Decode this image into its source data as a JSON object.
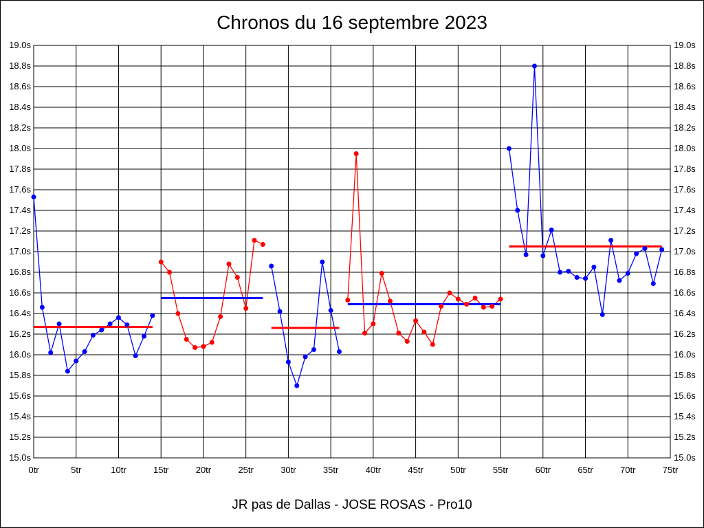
{
  "chart_data": {
    "type": "line",
    "title": "Chronos du 16 septembre 2023",
    "subtitle": "JR pas de Dallas - JOSE ROSAS - Pro10",
    "xlim": [
      0,
      75
    ],
    "ylim": [
      15.0,
      19.0
    ],
    "x_ticks": [
      "0tr",
      "5tr",
      "10tr",
      "15tr",
      "20tr",
      "25tr",
      "30tr",
      "35tr",
      "40tr",
      "45tr",
      "50tr",
      "55tr",
      "60tr",
      "65tr",
      "70tr",
      "75tr"
    ],
    "y_ticks": [
      "15.0s",
      "15.2s",
      "15.4s",
      "15.6s",
      "15.8s",
      "16.0s",
      "16.2s",
      "16.4s",
      "16.6s",
      "16.8s",
      "17.0s",
      "17.2s",
      "17.4s",
      "17.6s",
      "17.8s",
      "18.0s",
      "18.2s",
      "18.4s",
      "18.6s",
      "18.8s",
      "19.0s"
    ],
    "grid": true,
    "y_axis_both_sides": true,
    "series": [
      {
        "color": "#0000ff",
        "x_start": 0,
        "values": [
          17.53,
          16.46,
          16.02,
          16.3,
          15.84,
          15.94,
          16.03,
          16.19,
          16.24,
          16.3,
          16.36,
          16.29,
          15.99,
          16.18,
          16.38
        ],
        "mean": 16.27,
        "mean_color": "#ff0000"
      },
      {
        "color": "#ff0000",
        "x_start": 15,
        "values": [
          16.9,
          16.8,
          16.4,
          16.15,
          16.07,
          16.08,
          16.12,
          16.37,
          16.88,
          16.75,
          16.45,
          17.11,
          17.07
        ],
        "mean": 16.55,
        "mean_color": "#0000ff"
      },
      {
        "color": "#0000ff",
        "x_start": 28,
        "values": [
          16.86,
          16.42,
          15.93,
          15.7,
          15.98,
          16.05,
          16.9,
          16.43,
          16.03
        ],
        "mean": 16.26,
        "mean_color": "#ff0000"
      },
      {
        "color": "#ff0000",
        "x_start": 37,
        "values": [
          16.53,
          17.95,
          16.21,
          16.3,
          16.79,
          16.52,
          16.21,
          16.13,
          16.33,
          16.22,
          16.1,
          16.47,
          16.6,
          16.54,
          16.49,
          16.55,
          16.46,
          16.47,
          16.54
        ],
        "mean": 16.49,
        "mean_color": "#0000ff"
      },
      {
        "color": "#0000ff",
        "x_start": 56,
        "values": [
          18.0,
          17.4,
          16.97,
          18.8,
          16.96,
          17.21,
          16.8,
          16.81,
          16.75,
          16.74,
          16.85,
          16.39,
          17.11,
          16.72,
          16.79,
          16.98,
          17.03,
          16.69,
          17.02
        ],
        "mean": 17.05,
        "mean_color": "#ff0000"
      }
    ]
  }
}
